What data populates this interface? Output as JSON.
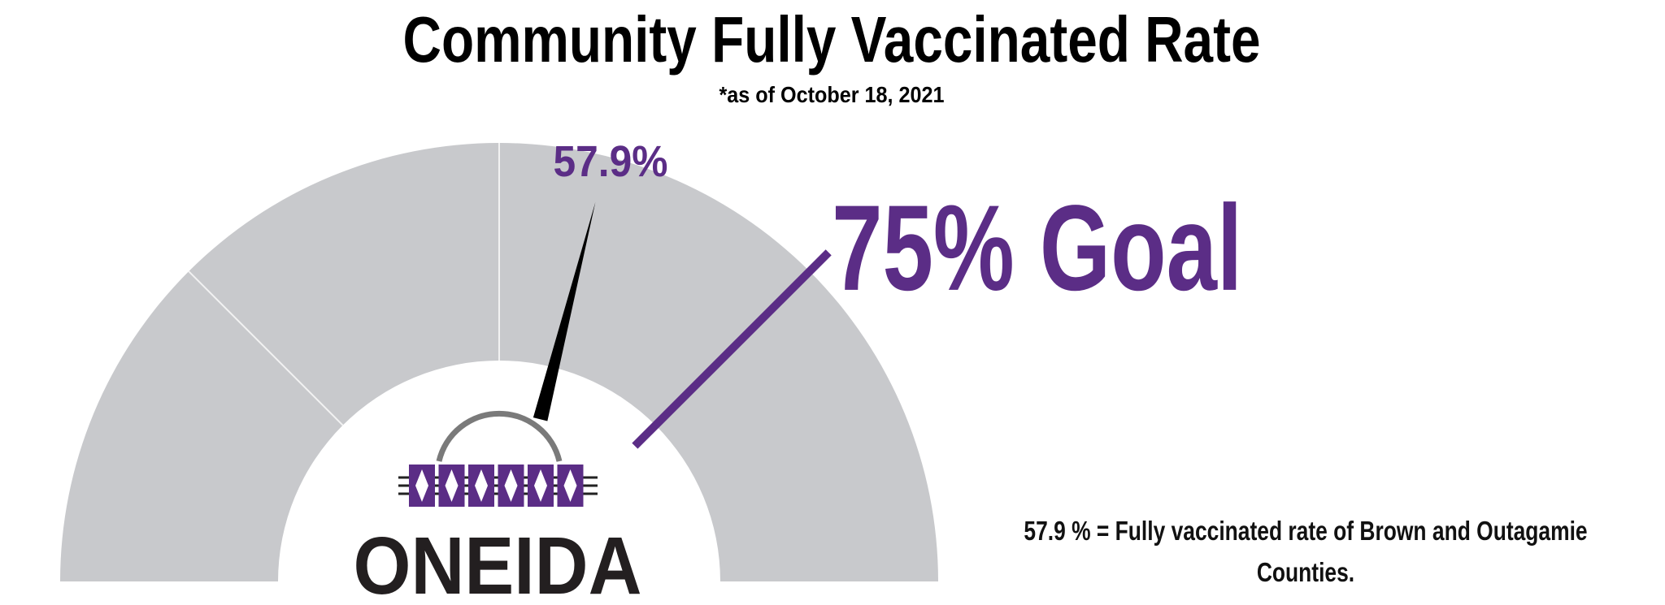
{
  "chart_data": {
    "type": "gauge",
    "title": "Community Fully Vaccinated Rate",
    "subtitle": "*as of October 18, 2021",
    "value": 57.9,
    "value_label": "57.9%",
    "goal": 75,
    "goal_label": "75% Goal",
    "ylim": [
      0,
      100
    ],
    "dividers": [
      25,
      50
    ],
    "color": "#5b2d86",
    "band_color": "#c8c9cc",
    "needle_color": "#000000",
    "note": "57.9 % = Fully vaccinated rate of Brown and Outagamie Counties.",
    "logo_text": "ONEIDA"
  }
}
